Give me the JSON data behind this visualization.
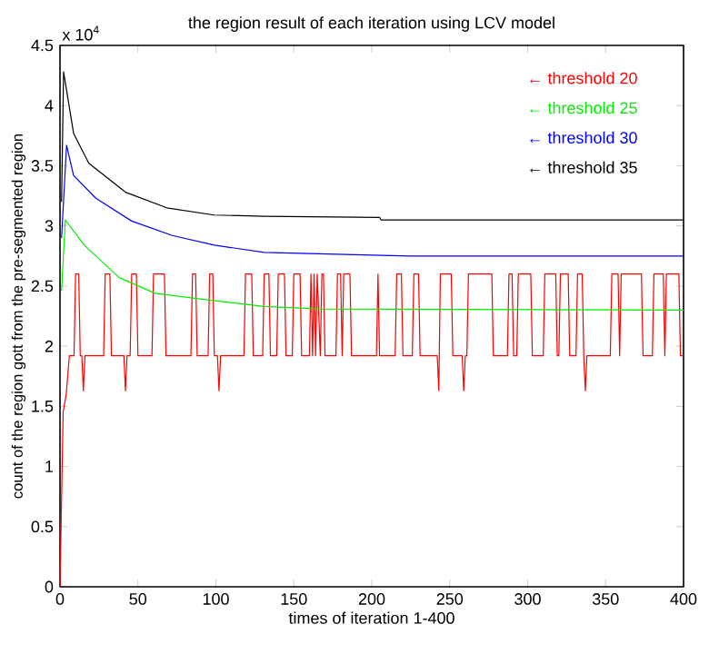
{
  "chart_data": {
    "type": "line",
    "title": "the region result of each iteration using LCV model",
    "xlabel": "times of iteration 1-400",
    "ylabel": "count of the region gott from the pre-segmented region",
    "annotations": [
      "x 10$^{4}$"
    ],
    "xlim": [
      0,
      400
    ],
    "ylim": [
      0,
      4.5
    ],
    "xticks": [
      0,
      50,
      100,
      150,
      200,
      250,
      300,
      350,
      400
    ],
    "yticks": [
      0,
      0.5,
      1,
      1.5,
      2,
      2.5,
      3,
      3.5,
      4,
      4.5
    ],
    "legend": "top right",
    "series": [
      {
        "name": "← threshold 20",
        "color": "#ff0000",
        "x": [
          0,
          2,
          4,
          6,
          9,
          10,
          12,
          13,
          14,
          15,
          16,
          28,
          29,
          32,
          33,
          41,
          42,
          43,
          45,
          46,
          49,
          50,
          59,
          60,
          67,
          68,
          84,
          85,
          87,
          88,
          95,
          96,
          98,
          99,
          101,
          102,
          103,
          118,
          119,
          123,
          124,
          130,
          131,
          134,
          135,
          139,
          140,
          144,
          145,
          149,
          150,
          154,
          155,
          160,
          161,
          162,
          163,
          164,
          165,
          167,
          168,
          169,
          170,
          177,
          178,
          180,
          181,
          182,
          186,
          187,
          203,
          204,
          205,
          215,
          216,
          219,
          220,
          226,
          227,
          230,
          231,
          242,
          243,
          244,
          251,
          252,
          258,
          259,
          260,
          261,
          262,
          277,
          278,
          287,
          288,
          290,
          291,
          293,
          294,
          302,
          303,
          310,
          311,
          318,
          319,
          320,
          321,
          326,
          327,
          331,
          332,
          335,
          336,
          337,
          338,
          353,
          354,
          358,
          359,
          360,
          373,
          374,
          380,
          381,
          387,
          388,
          389,
          397,
          398,
          400
        ],
        "values": [
          0,
          1.45,
          1.6,
          1.92,
          1.92,
          2.6,
          2.6,
          1.92,
          1.92,
          1.63,
          1.92,
          1.92,
          2.6,
          2.6,
          1.92,
          1.92,
          1.63,
          1.92,
          1.92,
          2.6,
          2.6,
          1.92,
          1.92,
          2.6,
          2.6,
          1.92,
          1.92,
          2.6,
          2.6,
          1.92,
          1.92,
          2.6,
          2.6,
          1.92,
          1.92,
          1.63,
          1.92,
          1.92,
          2.6,
          2.6,
          1.92,
          1.92,
          2.6,
          2.6,
          1.92,
          1.92,
          2.6,
          2.6,
          1.92,
          1.92,
          2.6,
          2.6,
          1.92,
          1.92,
          2.6,
          1.92,
          2.6,
          1.92,
          2.6,
          1.92,
          2.6,
          2.6,
          1.92,
          1.92,
          2.6,
          2.6,
          1.92,
          2.6,
          2.6,
          1.92,
          1.92,
          2.6,
          1.92,
          1.92,
          2.6,
          2.6,
          1.92,
          1.92,
          2.6,
          2.6,
          1.92,
          1.92,
          1.63,
          2.6,
          2.6,
          1.92,
          1.92,
          1.63,
          1.92,
          1.92,
          2.6,
          2.6,
          1.92,
          1.92,
          2.6,
          2.6,
          1.92,
          1.92,
          2.6,
          2.6,
          1.92,
          1.92,
          2.6,
          2.6,
          1.92,
          1.92,
          2.6,
          2.6,
          1.92,
          1.92,
          2.6,
          2.6,
          1.92,
          1.63,
          1.92,
          1.92,
          2.6,
          2.6,
          1.92,
          2.6,
          2.6,
          1.92,
          1.92,
          2.6,
          2.6,
          1.92,
          2.6,
          2.6,
          1.92,
          1.92
        ]
      },
      {
        "name": "← threshold 25",
        "color": "#00ee00",
        "x": [
          1,
          3.4,
          15.5,
          38,
          61,
          91,
          131,
          167,
          400
        ],
        "values": [
          2.46,
          3.05,
          2.84,
          2.57,
          2.44,
          2.39,
          2.33,
          2.31,
          2.3
        ]
      },
      {
        "name": "← threshold 30",
        "color": "#0000ff",
        "x": [
          1,
          4.2,
          8.7,
          23,
          46,
          72,
          99,
          131,
          224,
          400
        ],
        "values": [
          2.9,
          3.67,
          3.42,
          3.23,
          3.04,
          2.92,
          2.84,
          2.78,
          2.75,
          2.75
        ]
      },
      {
        "name": "← threshold 35",
        "color": "#000000",
        "x": [
          1,
          2.3,
          8.7,
          18.5,
          42,
          68.5,
          99,
          131,
          205,
          206,
          400
        ],
        "values": [
          3.2,
          4.28,
          3.77,
          3.52,
          3.28,
          3.15,
          3.09,
          3.08,
          3.07,
          3.05,
          3.05
        ]
      }
    ]
  }
}
